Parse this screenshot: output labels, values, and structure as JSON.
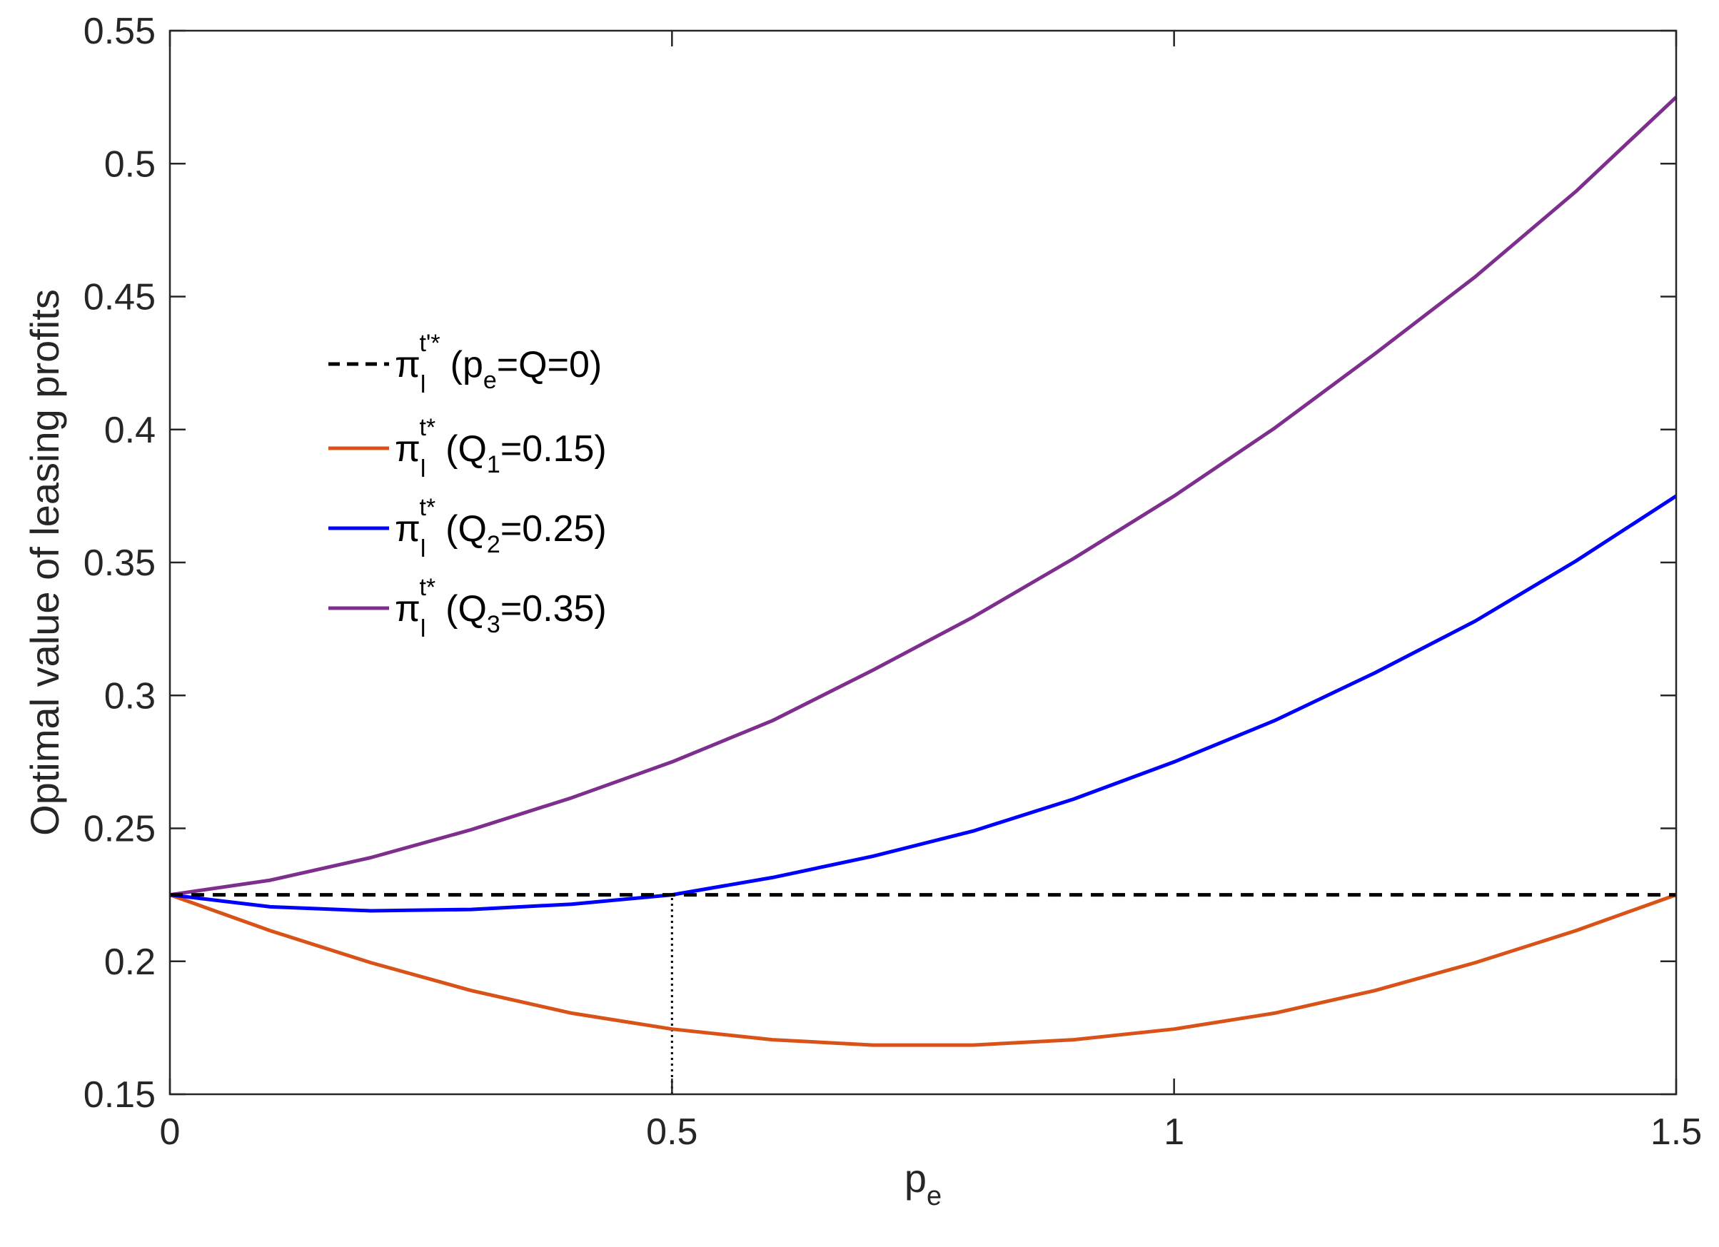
{
  "chart_data": {
    "type": "line",
    "title": "",
    "xlabel": {
      "main": "p",
      "sub": "e"
    },
    "ylabel": "Optimal value of leasing profits",
    "xlim": [
      0,
      1.5
    ],
    "ylim": [
      0.15,
      0.55
    ],
    "xticks": [
      0,
      0.5,
      1,
      1.5
    ],
    "xtick_labels": [
      "0",
      "0.5",
      "1",
      "1.5"
    ],
    "yticks": [
      0.15,
      0.2,
      0.25,
      0.3,
      0.35,
      0.4,
      0.45,
      0.5,
      0.55
    ],
    "ytick_labels": [
      "0.15",
      "0.2",
      "0.25",
      "0.3",
      "0.35",
      "0.4",
      "0.45",
      "0.5",
      "0.55"
    ],
    "grid": false,
    "legend_position": "left",
    "series": [
      {
        "legend": {
          "sym": "π",
          "sub": "l",
          "sup": "t'*",
          "paren_open": "(",
          "var": "p",
          "var_sub": "e",
          "rest": "=Q=0)"
        },
        "color": "#000000",
        "style": "dashed",
        "x": [
          0,
          1.5
        ],
        "y": [
          0.225,
          0.225
        ]
      },
      {
        "legend": {
          "sym": "π",
          "sub": "l",
          "sup": "t*",
          "paren_open": "(",
          "var": "Q",
          "var_sub": "1",
          "rest": "=0.15)"
        },
        "color": "#D95319",
        "style": "solid",
        "x": [
          0,
          0.1,
          0.2,
          0.3,
          0.4,
          0.5,
          0.6,
          0.7,
          0.8,
          0.9,
          1.0,
          1.1,
          1.2,
          1.3,
          1.4,
          1.5
        ],
        "y": [
          0.225,
          0.2115,
          0.1995,
          0.189,
          0.1805,
          0.1745,
          0.1705,
          0.1685,
          0.1685,
          0.1705,
          0.1745,
          0.1805,
          0.189,
          0.1995,
          0.2115,
          0.225
        ]
      },
      {
        "legend": {
          "sym": "π",
          "sub": "l",
          "sup": "t*",
          "paren_open": "(",
          "var": "Q",
          "var_sub": "2",
          "rest": "=0.25)"
        },
        "color": "#0000FF",
        "style": "solid",
        "x": [
          0,
          0.1,
          0.2,
          0.3,
          0.4,
          0.5,
          0.6,
          0.7,
          0.8,
          0.9,
          1.0,
          1.1,
          1.2,
          1.3,
          1.4,
          1.5
        ],
        "y": [
          0.225,
          0.2205,
          0.219,
          0.2195,
          0.2215,
          0.225,
          0.2315,
          0.2395,
          0.249,
          0.261,
          0.275,
          0.2905,
          0.3085,
          0.328,
          0.3505,
          0.375
        ]
      },
      {
        "legend": {
          "sym": "π",
          "sub": "l",
          "sup": "t*",
          "paren_open": "(",
          "var": "Q",
          "var_sub": "3",
          "rest": "=0.35)"
        },
        "color": "#7E2F8E",
        "style": "solid",
        "x": [
          0,
          0.1,
          0.2,
          0.3,
          0.4,
          0.5,
          0.6,
          0.7,
          0.8,
          0.9,
          1.0,
          1.1,
          1.2,
          1.3,
          1.4,
          1.5
        ],
        "y": [
          0.225,
          0.2305,
          0.239,
          0.2495,
          0.2615,
          0.275,
          0.2905,
          0.3095,
          0.3295,
          0.3515,
          0.375,
          0.4005,
          0.4285,
          0.4575,
          0.4895,
          0.525
        ]
      }
    ],
    "reference_line": {
      "x": 0.5,
      "y_from": 0.15,
      "y_to": 0.225,
      "style": "dotted",
      "color": "#000000"
    }
  }
}
